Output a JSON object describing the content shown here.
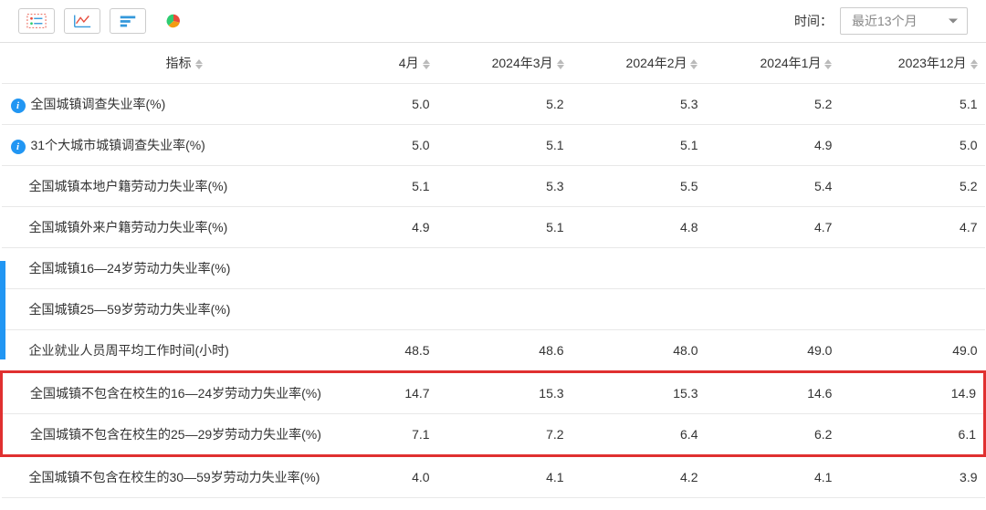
{
  "toolbar": {
    "time_label": "时间：",
    "time_selected": "最近13个月"
  },
  "table": {
    "columns": [
      {
        "key": "indicator",
        "label": "指标"
      },
      {
        "key": "c1",
        "label": "4月"
      },
      {
        "key": "c2",
        "label": "2024年3月"
      },
      {
        "key": "c3",
        "label": "2024年2月"
      },
      {
        "key": "c4",
        "label": "2024年1月"
      },
      {
        "key": "c5",
        "label": "2023年12月"
      }
    ],
    "rows": [
      {
        "has_info": true,
        "label": "全国城镇调查失业率(%)",
        "values": [
          "5.0",
          "5.2",
          "5.3",
          "5.2",
          "5.1"
        ],
        "highlight": false
      },
      {
        "has_info": true,
        "label": "31个大城市城镇调查失业率(%)",
        "values": [
          "5.0",
          "5.1",
          "5.1",
          "4.9",
          "5.0"
        ],
        "highlight": false
      },
      {
        "has_info": false,
        "label": "全国城镇本地户籍劳动力失业率(%)",
        "values": [
          "5.1",
          "5.3",
          "5.5",
          "5.4",
          "5.2"
        ],
        "highlight": false
      },
      {
        "has_info": false,
        "label": "全国城镇外来户籍劳动力失业率(%)",
        "values": [
          "4.9",
          "5.1",
          "4.8",
          "4.7",
          "4.7"
        ],
        "highlight": false
      },
      {
        "has_info": false,
        "label": "全国城镇16—24岁劳动力失业率(%)",
        "values": [
          "",
          "",
          "",
          "",
          ""
        ],
        "highlight": false
      },
      {
        "has_info": false,
        "label": "全国城镇25—59岁劳动力失业率(%)",
        "values": [
          "",
          "",
          "",
          "",
          ""
        ],
        "highlight": false
      },
      {
        "has_info": false,
        "label": "企业就业人员周平均工作时间(小时)",
        "values": [
          "48.5",
          "48.6",
          "48.0",
          "49.0",
          "49.0"
        ],
        "highlight": false
      },
      {
        "has_info": false,
        "label": "全国城镇不包含在校生的16—24岁劳动力失业率(%)",
        "values": [
          "14.7",
          "15.3",
          "15.3",
          "14.6",
          "14.9"
        ],
        "highlight": true
      },
      {
        "has_info": false,
        "label": "全国城镇不包含在校生的25—29岁劳动力失业率(%)",
        "values": [
          "7.1",
          "7.2",
          "6.4",
          "6.2",
          "6.1"
        ],
        "highlight": true
      },
      {
        "has_info": false,
        "label": "全国城镇不包含在校生的30—59岁劳动力失业率(%)",
        "values": [
          "4.0",
          "4.1",
          "4.2",
          "4.1",
          "3.9"
        ],
        "highlight": false
      }
    ]
  },
  "style": {
    "highlight_color": "#e03030",
    "info_icon_bg": "#2196f3",
    "border_color": "#e8e8e8"
  }
}
